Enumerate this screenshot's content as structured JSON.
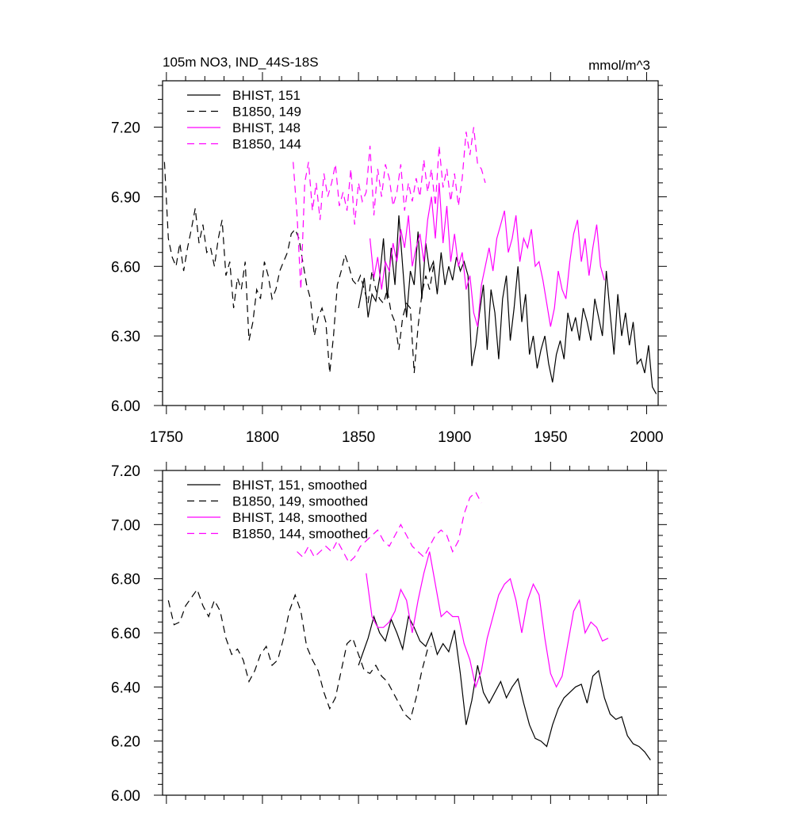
{
  "title_left": "105m NO3, IND_44S-18S",
  "title_right": "mmol/m^3",
  "colors": {
    "black": "#000000",
    "magenta": "#ff00ff"
  },
  "chart_data": [
    {
      "type": "line",
      "xlim": [
        1748,
        2006
      ],
      "ylim": [
        6.0,
        7.4
      ],
      "xticks": [
        1750,
        1800,
        1850,
        1900,
        1950,
        2000
      ],
      "xtick_labels": [
        "1750",
        "1800",
        "1850",
        "1900",
        "1950",
        "2000"
      ],
      "yticks": [
        6.0,
        6.3,
        6.6,
        6.9,
        7.2
      ],
      "ytick_labels": [
        "6.00",
        "6.30",
        "6.60",
        "6.90",
        "7.20"
      ],
      "legend_position": "top-left",
      "series": [
        {
          "name": "BHIST, 151",
          "color": "#000000",
          "dash": "solid",
          "x": [
            1850,
            1853,
            1855,
            1857,
            1859,
            1861,
            1863,
            1865,
            1867,
            1869,
            1871,
            1873,
            1875,
            1877,
            1879,
            1881,
            1883,
            1885,
            1887,
            1889,
            1891,
            1893,
            1895,
            1897,
            1899,
            1901,
            1903,
            1905,
            1907,
            1909,
            1911,
            1913,
            1915,
            1917,
            1919,
            1921,
            1923,
            1925,
            1927,
            1929,
            1931,
            1933,
            1935,
            1937,
            1939,
            1941,
            1943,
            1945,
            1947,
            1949,
            1951,
            1953,
            1955,
            1957,
            1959,
            1961,
            1963,
            1965,
            1967,
            1969,
            1971,
            1973,
            1975,
            1977,
            1979,
            1981,
            1983,
            1985,
            1987,
            1989,
            1991,
            1993,
            1995,
            1997,
            1999,
            2001,
            2003,
            2005
          ],
          "y": [
            6.42,
            6.55,
            6.38,
            6.48,
            6.45,
            6.55,
            6.72,
            6.46,
            6.68,
            6.52,
            6.82,
            6.6,
            6.38,
            6.58,
            6.52,
            6.75,
            6.46,
            6.7,
            6.58,
            6.62,
            6.48,
            6.66,
            6.52,
            6.6,
            6.54,
            6.64,
            6.58,
            6.62,
            6.56,
            6.17,
            6.26,
            6.4,
            6.52,
            6.24,
            6.5,
            6.4,
            6.2,
            6.46,
            6.56,
            6.28,
            6.42,
            6.6,
            6.36,
            6.48,
            6.22,
            6.3,
            6.16,
            6.24,
            6.3,
            6.18,
            6.1,
            6.22,
            6.28,
            6.2,
            6.4,
            6.32,
            6.38,
            6.28,
            6.42,
            6.36,
            6.28,
            6.46,
            6.38,
            6.3,
            6.58,
            6.4,
            6.22,
            6.48,
            6.3,
            6.4,
            6.26,
            6.36,
            6.18,
            6.2,
            6.14,
            6.26,
            6.08,
            6.05
          ]
        },
        {
          "name": "B1850, 149",
          "color": "#000000",
          "dash": "dash",
          "x": [
            1749,
            1751,
            1753,
            1755,
            1757,
            1759,
            1761,
            1763,
            1765,
            1767,
            1769,
            1771,
            1773,
            1775,
            1777,
            1779,
            1781,
            1783,
            1785,
            1787,
            1789,
            1791,
            1793,
            1795,
            1797,
            1799,
            1801,
            1803,
            1805,
            1807,
            1809,
            1811,
            1813,
            1815,
            1817,
            1819,
            1821,
            1823,
            1825,
            1827,
            1829,
            1831,
            1833,
            1835,
            1837,
            1839,
            1841,
            1843,
            1845,
            1847,
            1849,
            1851,
            1853,
            1855,
            1857,
            1859,
            1861,
            1863,
            1865,
            1867,
            1869,
            1871,
            1873,
            1875,
            1877,
            1879,
            1881,
            1883,
            1885,
            1887,
            1889
          ],
          "y": [
            7.05,
            6.72,
            6.64,
            6.6,
            6.7,
            6.58,
            6.68,
            6.76,
            6.85,
            6.7,
            6.78,
            6.66,
            6.68,
            6.6,
            6.72,
            6.8,
            6.56,
            6.62,
            6.42,
            6.55,
            6.5,
            6.62,
            6.28,
            6.36,
            6.5,
            6.46,
            6.62,
            6.56,
            6.46,
            6.5,
            6.58,
            6.62,
            6.66,
            6.74,
            6.76,
            6.72,
            6.62,
            6.52,
            6.46,
            6.3,
            6.38,
            6.42,
            6.36,
            6.14,
            6.3,
            6.52,
            6.58,
            6.65,
            6.6,
            6.54,
            6.52,
            6.56,
            6.5,
            6.44,
            6.58,
            6.5,
            6.46,
            6.44,
            6.5,
            6.4,
            6.36,
            6.24,
            6.38,
            6.44,
            6.42,
            6.14,
            6.34,
            6.48,
            6.56,
            6.5,
            6.6
          ]
        },
        {
          "name": "BHIST, 148",
          "color": "#ff00ff",
          "dash": "solid",
          "x": [
            1856,
            1858,
            1860,
            1862,
            1864,
            1866,
            1868,
            1870,
            1872,
            1874,
            1876,
            1878,
            1880,
            1882,
            1884,
            1886,
            1888,
            1890,
            1892,
            1894,
            1896,
            1898,
            1900,
            1902,
            1904,
            1906,
            1908,
            1910,
            1912,
            1914,
            1916,
            1918,
            1920,
            1922,
            1924,
            1926,
            1928,
            1930,
            1932,
            1934,
            1936,
            1938,
            1940,
            1942,
            1944,
            1946,
            1948,
            1950,
            1952,
            1954,
            1956,
            1958,
            1960,
            1962,
            1964,
            1966,
            1968,
            1970,
            1972,
            1974,
            1976,
            1978
          ],
          "y": [
            6.72,
            6.55,
            6.64,
            6.5,
            6.62,
            6.58,
            6.7,
            6.62,
            6.76,
            6.68,
            6.82,
            6.6,
            6.68,
            6.74,
            6.62,
            6.8,
            6.9,
            6.72,
            6.96,
            6.7,
            6.86,
            6.62,
            6.74,
            6.6,
            6.66,
            6.5,
            6.56,
            6.4,
            6.34,
            6.52,
            6.6,
            6.68,
            6.58,
            6.72,
            6.78,
            6.84,
            6.66,
            6.72,
            6.82,
            6.62,
            6.72,
            6.68,
            6.76,
            6.6,
            6.62,
            6.54,
            6.44,
            6.34,
            6.42,
            6.58,
            6.5,
            6.46,
            6.62,
            6.74,
            6.8,
            6.62,
            6.72,
            6.56,
            6.68,
            6.78,
            6.6,
            6.54
          ]
        },
        {
          "name": "B1850, 144",
          "color": "#ff00ff",
          "dash": "dash",
          "x": [
            1816,
            1818,
            1820,
            1822,
            1824,
            1826,
            1828,
            1830,
            1832,
            1834,
            1836,
            1838,
            1840,
            1842,
            1844,
            1846,
            1848,
            1850,
            1852,
            1854,
            1856,
            1858,
            1860,
            1862,
            1864,
            1866,
            1868,
            1870,
            1872,
            1874,
            1876,
            1878,
            1880,
            1882,
            1884,
            1886,
            1888,
            1890,
            1892,
            1894,
            1896,
            1898,
            1900,
            1902,
            1904,
            1906,
            1908,
            1910,
            1912,
            1914,
            1916
          ],
          "y": [
            7.05,
            6.82,
            6.5,
            6.96,
            7.05,
            6.84,
            6.96,
            6.8,
            7.0,
            6.9,
            6.96,
            7.04,
            6.86,
            6.92,
            6.84,
            7.02,
            6.78,
            6.96,
            6.88,
            6.92,
            7.12,
            6.82,
            7.02,
            6.9,
            7.04,
            6.98,
            6.86,
            6.92,
            7.04,
            6.84,
            6.96,
            6.88,
            6.98,
            6.9,
            7.06,
            6.92,
            7.02,
            6.86,
            7.12,
            6.94,
            7.02,
            6.88,
            7.0,
            6.86,
            6.98,
            7.18,
            7.08,
            7.2,
            7.04,
            7.02,
            6.96
          ]
        }
      ]
    },
    {
      "type": "line",
      "xlim": [
        1748,
        2006
      ],
      "ylim": [
        6.0,
        7.2
      ],
      "yticks": [
        6.0,
        6.2,
        6.4,
        6.6,
        6.8,
        7.0,
        7.2
      ],
      "ytick_labels": [
        "6.00",
        "6.20",
        "6.40",
        "6.60",
        "6.80",
        "7.00",
        "7.20"
      ],
      "legend_position": "top-left",
      "series": [
        {
          "name": "BHIST, 151, smoothed",
          "color": "#000000",
          "dash": "solid",
          "x": [
            1850,
            1855,
            1858,
            1861,
            1864,
            1867,
            1870,
            1873,
            1876,
            1879,
            1882,
            1885,
            1888,
            1891,
            1894,
            1897,
            1900,
            1903,
            1906,
            1909,
            1912,
            1915,
            1918,
            1921,
            1924,
            1927,
            1930,
            1933,
            1936,
            1939,
            1942,
            1945,
            1948,
            1951,
            1954,
            1957,
            1960,
            1963,
            1966,
            1969,
            1972,
            1975,
            1978,
            1981,
            1984,
            1987,
            1990,
            1993,
            1996,
            1999,
            2002
          ],
          "y": [
            6.48,
            6.58,
            6.66,
            6.6,
            6.57,
            6.65,
            6.6,
            6.54,
            6.66,
            6.62,
            6.57,
            6.55,
            6.6,
            6.52,
            6.56,
            6.53,
            6.61,
            6.45,
            6.26,
            6.35,
            6.48,
            6.38,
            6.34,
            6.38,
            6.42,
            6.36,
            6.4,
            6.43,
            6.34,
            6.26,
            6.21,
            6.2,
            6.18,
            6.26,
            6.32,
            6.36,
            6.38,
            6.4,
            6.41,
            6.34,
            6.44,
            6.46,
            6.36,
            6.3,
            6.28,
            6.29,
            6.22,
            6.19,
            6.18,
            6.16,
            6.13
          ]
        },
        {
          "name": "B1850, 149, smoothed",
          "color": "#000000",
          "dash": "dash",
          "x": [
            1751,
            1754,
            1757,
            1760,
            1763,
            1766,
            1769,
            1772,
            1775,
            1778,
            1781,
            1784,
            1787,
            1790,
            1793,
            1796,
            1799,
            1802,
            1805,
            1808,
            1811,
            1814,
            1817,
            1820,
            1823,
            1826,
            1829,
            1832,
            1835,
            1838,
            1841,
            1844,
            1847,
            1850,
            1853,
            1856,
            1859,
            1862,
            1865,
            1868,
            1871,
            1874,
            1877,
            1880,
            1883,
            1886,
            1888
          ],
          "y": [
            6.72,
            6.63,
            6.64,
            6.7,
            6.73,
            6.76,
            6.7,
            6.66,
            6.72,
            6.68,
            6.58,
            6.52,
            6.54,
            6.5,
            6.42,
            6.46,
            6.52,
            6.55,
            6.48,
            6.5,
            6.58,
            6.68,
            6.74,
            6.68,
            6.55,
            6.5,
            6.46,
            6.38,
            6.32,
            6.36,
            6.46,
            6.56,
            6.58,
            6.52,
            6.46,
            6.45,
            6.48,
            6.44,
            6.42,
            6.38,
            6.34,
            6.3,
            6.28,
            6.36,
            6.46,
            6.54,
            6.55
          ]
        },
        {
          "name": "BHIST, 148, smoothed",
          "color": "#ff00ff",
          "dash": "solid",
          "x": [
            1854,
            1857,
            1860,
            1863,
            1866,
            1869,
            1872,
            1875,
            1878,
            1881,
            1884,
            1887,
            1890,
            1893,
            1896,
            1899,
            1902,
            1905,
            1908,
            1911,
            1914,
            1917,
            1920,
            1923,
            1926,
            1929,
            1932,
            1935,
            1938,
            1941,
            1944,
            1947,
            1950,
            1953,
            1956,
            1959,
            1962,
            1965,
            1968,
            1971,
            1974,
            1977,
            1980
          ],
          "y": [
            6.82,
            6.66,
            6.62,
            6.62,
            6.64,
            6.68,
            6.76,
            6.72,
            6.6,
            6.72,
            6.82,
            6.9,
            6.78,
            6.66,
            6.68,
            6.66,
            6.66,
            6.56,
            6.5,
            6.4,
            6.46,
            6.58,
            6.66,
            6.74,
            6.78,
            6.8,
            6.72,
            6.6,
            6.72,
            6.78,
            6.74,
            6.58,
            6.45,
            6.4,
            6.44,
            6.56,
            6.68,
            6.72,
            6.6,
            6.64,
            6.62,
            6.57,
            6.58
          ]
        },
        {
          "name": "B1850, 144, smoothed",
          "color": "#ff00ff",
          "dash": "dash",
          "x": [
            1818,
            1821,
            1824,
            1827,
            1830,
            1833,
            1836,
            1839,
            1842,
            1845,
            1848,
            1851,
            1854,
            1857,
            1860,
            1863,
            1866,
            1869,
            1872,
            1875,
            1878,
            1881,
            1884,
            1887,
            1890,
            1893,
            1896,
            1899,
            1902,
            1905,
            1908,
            1911,
            1914
          ],
          "y": [
            6.9,
            6.88,
            6.92,
            6.88,
            6.9,
            6.92,
            6.9,
            6.94,
            6.9,
            6.86,
            6.88,
            6.92,
            6.94,
            6.96,
            6.98,
            6.94,
            6.92,
            6.96,
            7.0,
            6.96,
            6.92,
            6.9,
            6.88,
            6.92,
            6.96,
            6.98,
            6.96,
            6.9,
            6.94,
            7.04,
            7.1,
            7.12,
            7.08
          ]
        }
      ]
    }
  ]
}
